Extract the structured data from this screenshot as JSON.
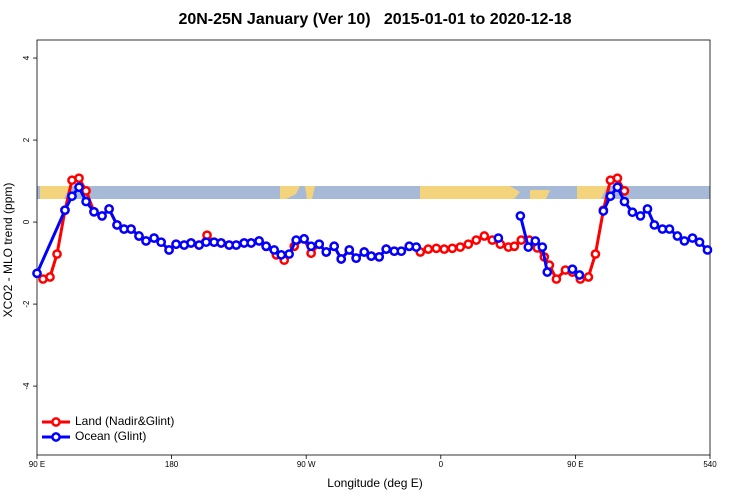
{
  "chart_data": {
    "type": "line",
    "title": "20N-25N January (Ver 10)   2015-01-01 to 2020-12-18",
    "x_label": "Longitude (deg E)",
    "y_label": "XCO2 - MLO trend (ppm)",
    "xlim": [
      90,
      540
    ],
    "xticks": [
      {
        "value": 90,
        "label": "90 E"
      },
      180,
      {
        "value": 270,
        "label": "90 W"
      },
      {
        "value": 360,
        "label": "0"
      },
      {
        "value": 450,
        "label": "90 E"
      },
      540
    ],
    "ylim": [
      -5.68,
      4.44
    ],
    "yticks": [
      -4,
      -2,
      0,
      2,
      4
    ],
    "legend": "bottom-left",
    "series": [
      {
        "name": "Land (Nadir&Glint)",
        "color": "#ff0000",
        "x": [
          94,
          98.7,
          103.4,
          108.7,
          113.4,
          118.1,
          122.8,
          128.1,
          133.5,
          138.2,
          143.5,
          148.2,
          152.9,
          158.2,
          162.9,
          168.3,
          173.0,
          178.3,
          183.0,
          188.4,
          193.0,
          198.4,
          203.7,
          208.4,
          213.1,
          218.5,
          223.2,
          228.5,
          233.2,
          238.5,
          243.2,
          250,
          255.3,
          262,
          268.6,
          273.3,
          278.7,
          283.4,
          288.7,
          293.4,
          298.8,
          303.4,
          308.8,
          313.5,
          318.8,
          323.5,
          328.9,
          333.6,
          338.9,
          346.3,
          351.6,
          357,
          362.3,
          367.7,
          373,
          378.4,
          383.7,
          389.1,
          394.4,
          399.8,
          405.2,
          409.2,
          413.8,
          419.2,
          424.5,
          429.2,
          432.6,
          437.3,
          443.3,
          448,
          453.3,
          458.7,
          463.4,
          468.7,
          473.4,
          478.1,
          482.8
        ],
        "values": [
          -1.39,
          -1.34,
          -0.78,
          0.29,
          1.02,
          1.07,
          0.76,
          0.25,
          0.15,
          0.32,
          -0.07,
          -0.17,
          -0.17,
          -0.34,
          -0.46,
          -0.39,
          -0.49,
          -0.68,
          -0.54,
          -0.56,
          -0.51,
          -0.56,
          -0.32,
          -0.49,
          -0.51,
          -0.56,
          -0.56,
          -0.51,
          -0.51,
          -0.46,
          -0.59,
          -0.8,
          -0.93,
          -0.59,
          -0.41,
          -0.76,
          -0.54,
          -0.73,
          -0.59,
          -0.9,
          -0.68,
          -0.88,
          -0.73,
          -0.83,
          -0.85,
          -0.66,
          -0.71,
          -0.71,
          -0.59,
          -0.73,
          -0.66,
          -0.64,
          -0.66,
          -0.64,
          -0.61,
          -0.54,
          -0.44,
          -0.34,
          -0.44,
          -0.54,
          -0.61,
          -0.59,
          -0.44,
          -0.44,
          -0.63,
          -0.85,
          -1.05,
          -1.39,
          -1.17,
          -1.22,
          -1.39,
          -1.34,
          -0.78,
          0.29,
          1.02,
          1.07,
          0.76
        ]
      },
      {
        "name": "Ocean (Glint)",
        "color": "#0000ff",
        "x": [
          90.0,
          108.7,
          113.4,
          118.1,
          122.8,
          128.1,
          133.5,
          138.2,
          143.5,
          148.2,
          152.9,
          158.2,
          162.9,
          168.3,
          173.0,
          178.3,
          183.0,
          188.4,
          193.0,
          198.4,
          203.1,
          208.4,
          213.1,
          218.5,
          223.2,
          228.5,
          233.2,
          238.5,
          243.2,
          248.6,
          253.3,
          258.6,
          263.3,
          268.6,
          273.3,
          278.7,
          283.4,
          288.7,
          293.4,
          298.8,
          303.4,
          308.8,
          313.5,
          318.8,
          323.5,
          328.9,
          333.6,
          338.9,
          343.6,
          370,
          398.5,
          405,
          413.2,
          418.5,
          423.2,
          427.9,
          431.2,
          440,
          448,
          452.7,
          460,
          468.7,
          473.4,
          478.1,
          482.8,
          488.1,
          493.5,
          498.2,
          502.8,
          508.2,
          512.9,
          518.2,
          522.9,
          528.3,
          533,
          538.3
        ],
        "values": [
          -1.25,
          0.29,
          0.63,
          0.85,
          0.5,
          0.25,
          0.15,
          0.32,
          -0.07,
          -0.17,
          -0.17,
          -0.34,
          -0.46,
          -0.39,
          -0.49,
          -0.68,
          -0.54,
          -0.56,
          -0.51,
          -0.56,
          -0.49,
          -0.49,
          -0.51,
          -0.56,
          -0.56,
          -0.51,
          -0.51,
          -0.46,
          -0.59,
          -0.68,
          -0.8,
          -0.78,
          -0.44,
          -0.41,
          -0.59,
          -0.54,
          -0.73,
          -0.59,
          -0.9,
          -0.68,
          -0.88,
          -0.73,
          -0.83,
          -0.85,
          -0.66,
          -0.71,
          -0.71,
          -0.59,
          -0.61,
          null,
          -0.39,
          null,
          0.15,
          -0.61,
          -0.46,
          -0.61,
          -1.22,
          null,
          -1.15,
          -1.29,
          null,
          0.27,
          0.63,
          0.85,
          0.5,
          0.24,
          0.15,
          0.32,
          -0.07,
          -0.17,
          -0.17,
          -0.34,
          -0.46,
          -0.39,
          -0.49,
          -0.68
        ]
      }
    ]
  }
}
